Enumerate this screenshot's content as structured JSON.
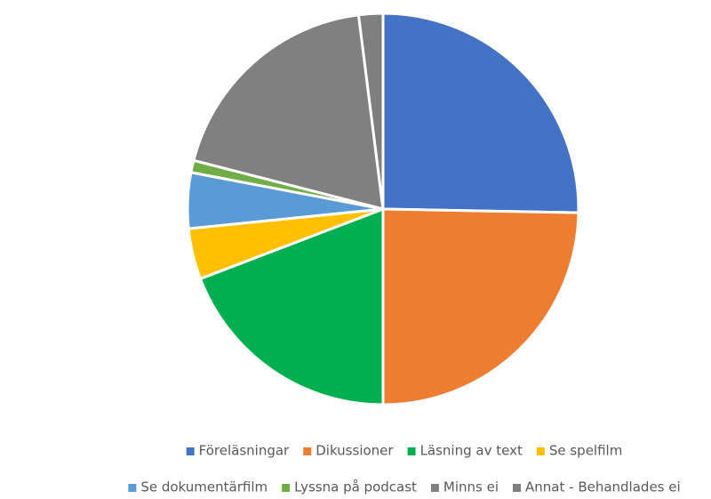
{
  "chart_data": {
    "type": "pie",
    "categories": [
      "Föreläsningar",
      "Dikussioner",
      "Läsning av text",
      "Se spelfilm",
      "Se dokumentärfilm",
      "Lyssna på podcast",
      "Minns ei",
      "Annat - Behandlades ei"
    ],
    "values": [
      25.3,
      24.7,
      19.2,
      4.2,
      4.6,
      1,
      19,
      2
    ],
    "colors": [
      "#4472c4",
      "#ed7d31",
      "#00b050",
      "#ffc000",
      "#5b9bd5",
      "#70ad47",
      "#808080",
      "#7f7f7f"
    ],
    "legend": "bottom"
  }
}
